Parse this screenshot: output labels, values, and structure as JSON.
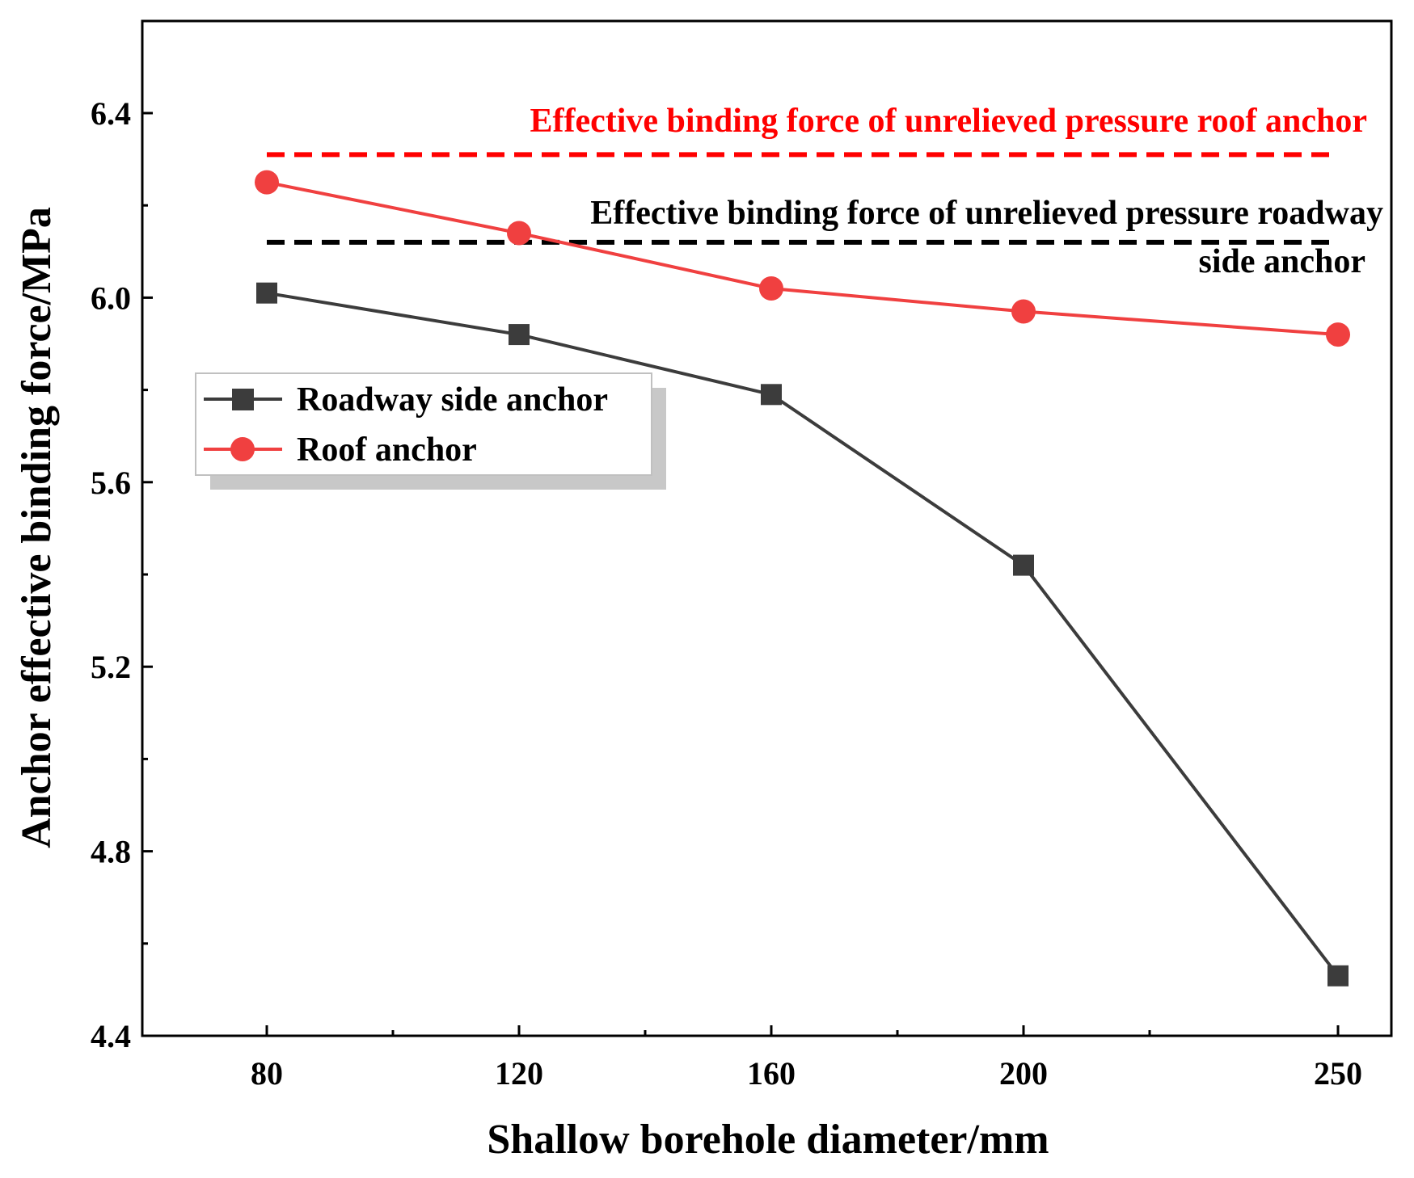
{
  "chart_data": {
    "type": "line",
    "xlabel": "Shallow borehole diameter/mm",
    "ylabel": "Anchor effective binding force/MPa",
    "categories": [
      "80",
      "120",
      "160",
      "200",
      "250"
    ],
    "x": [
      80,
      120,
      160,
      200,
      250
    ],
    "ylim": [
      4.4,
      6.6
    ],
    "yticks": [
      "4.4",
      "4.8",
      "5.2",
      "5.6",
      "6.0",
      "6.4"
    ],
    "grid": false,
    "legend_position": "center-left",
    "series": [
      {
        "name": "Roadway side anchor",
        "color": "#3c3c3c",
        "marker": "square",
        "values": [
          6.01,
          5.92,
          5.79,
          5.42,
          4.53
        ]
      },
      {
        "name": "Roof anchor",
        "color": "#f04040",
        "marker": "circle",
        "values": [
          6.25,
          6.14,
          6.02,
          5.97,
          5.92
        ]
      }
    ],
    "reference_lines": [
      {
        "label": "Effective binding force of unrelieved pressure roof anchor",
        "value": 6.31,
        "color": "#ff0000",
        "style": "dashed"
      },
      {
        "label_line1": "Effective binding force of unrelieved pressure roadway",
        "label_line2": "side anchor",
        "value": 6.12,
        "color": "#000000",
        "style": "dashed"
      }
    ]
  }
}
